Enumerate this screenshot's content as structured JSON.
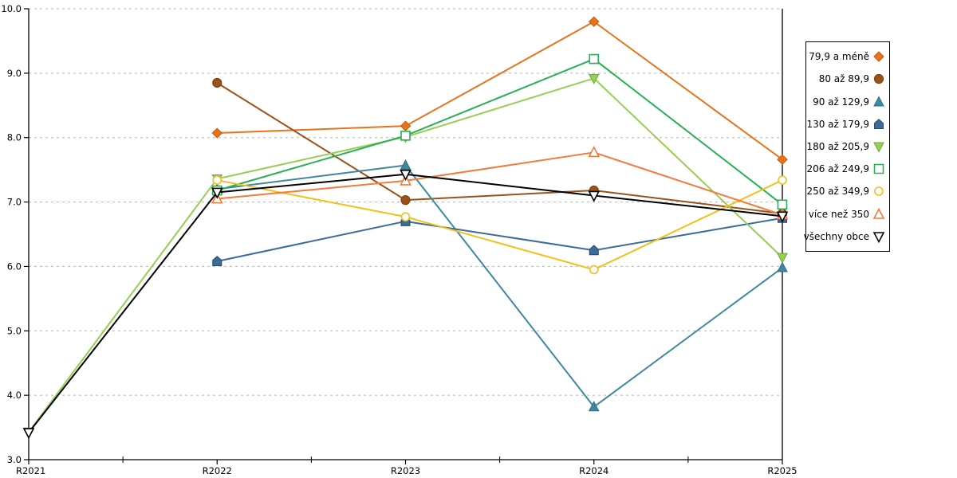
{
  "chart_data": {
    "type": "line",
    "title": "",
    "xlabel": "",
    "ylabel": "",
    "categories": [
      "R2021",
      "R2022",
      "R2023",
      "R2024",
      "R2025"
    ],
    "ylim": [
      3.0,
      10.0
    ],
    "ytick_step": 1.0,
    "ytick_labels": [
      "3.0",
      "4.0",
      "5.0",
      "6.0",
      "7.0",
      "8.0",
      "9.0",
      "10.0"
    ],
    "grid": "horizontal-dashed",
    "grid_color": "#b5b5b5",
    "axis_color": "#000000",
    "legend_position": "right",
    "series": [
      {
        "name": "79,9 a méně",
        "marker": "diamond",
        "filled": true,
        "color": "#e8731a",
        "edge": "#c05a10",
        "values": [
          null,
          8.07,
          8.18,
          9.8,
          7.66
        ]
      },
      {
        "name": "80 až 89,9",
        "marker": "circle",
        "filled": true,
        "color": "#9b521a",
        "edge": "#7a3e0c",
        "values": [
          null,
          8.85,
          7.03,
          7.18,
          6.82
        ]
      },
      {
        "name": "90 až 129,9",
        "marker": "triangle-up",
        "filled": true,
        "color": "#3e89a0",
        "edge": "#2e6c80",
        "values": [
          null,
          7.2,
          7.57,
          3.82,
          5.98
        ]
      },
      {
        "name": "130 až 179,9",
        "marker": "pentagon",
        "filled": true,
        "color": "#3c6a99",
        "edge": "#27496b",
        "values": [
          null,
          6.08,
          6.7,
          6.25,
          6.75
        ]
      },
      {
        "name": "180 až 205,9",
        "marker": "triangle-down",
        "filled": true,
        "color": "#97ce53",
        "edge": "#6fa52f",
        "values": [
          3.43,
          7.36,
          8.01,
          8.92,
          6.14
        ]
      },
      {
        "name": "206 až 249,9",
        "marker": "square",
        "filled": false,
        "color": "#27b056",
        "edge": "#27b056",
        "values": [
          null,
          7.18,
          8.03,
          9.22,
          6.96
        ]
      },
      {
        "name": "250 až 349,9",
        "marker": "circle",
        "filled": false,
        "color": "#f2c01e",
        "edge": "#f2c01e",
        "values": [
          null,
          7.34,
          6.77,
          5.95,
          7.34
        ]
      },
      {
        "name": "více než 350",
        "marker": "triangle-up",
        "filled": false,
        "color": "#f4793b",
        "edge": "#f4793b",
        "values": [
          null,
          7.05,
          7.33,
          7.77,
          6.8
        ]
      },
      {
        "name": "všechny obce",
        "marker": "triangle-down",
        "filled": false,
        "color": "#000000",
        "edge": "#000000",
        "values": [
          3.42,
          7.15,
          7.43,
          7.1,
          6.78
        ]
      }
    ]
  }
}
